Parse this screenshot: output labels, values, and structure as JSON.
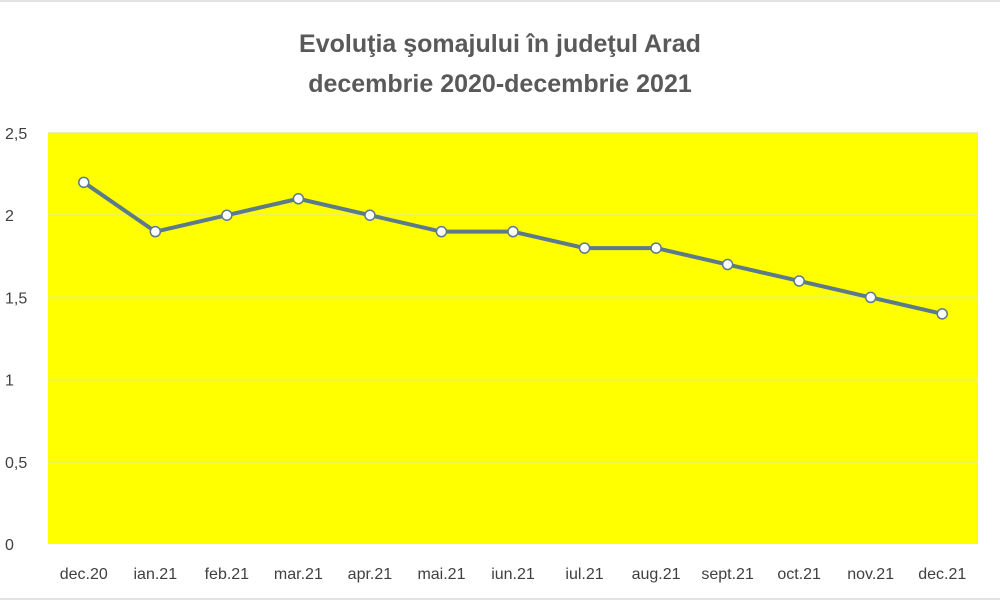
{
  "chart_data": {
    "type": "line",
    "title": "Evoluţia şomajului în judeţul Arad",
    "subtitle": "decembrie 2020-decembrie 2021",
    "xlabel": "",
    "ylabel": "",
    "categories": [
      "dec.20",
      "ian.21",
      "feb.21",
      "mar.21",
      "apr.21",
      "mai.21",
      "iun.21",
      "iul.21",
      "aug.21",
      "sept.21",
      "oct.21",
      "nov.21",
      "dec.21"
    ],
    "series": [
      {
        "values": [
          2.2,
          1.9,
          2.0,
          2.1,
          2.0,
          1.9,
          1.9,
          1.8,
          1.8,
          1.7,
          1.6,
          1.5,
          1.4
        ]
      }
    ],
    "ylim": [
      0,
      2.5
    ],
    "yticks": [
      "0",
      "0,5",
      "1",
      "1,5",
      "2",
      "2,5"
    ],
    "grid": true,
    "legend": "none",
    "colors": {
      "plot_background": "#ffff00",
      "line": "#5b7a8a",
      "marker_fill": "#ffffff",
      "gridline": "#e6e6a8"
    }
  }
}
